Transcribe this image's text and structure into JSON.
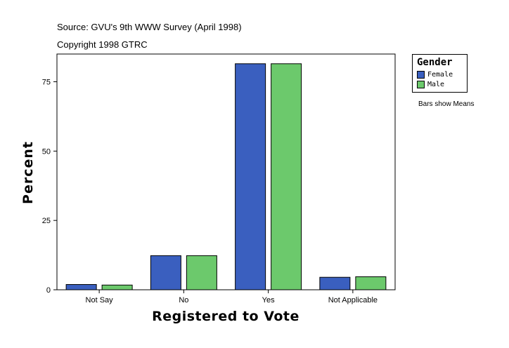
{
  "header": {
    "source": "Source: GVU's 9th WWW Survey (April 1998)",
    "copyright": "Copyright 1998 GTRC"
  },
  "legend": {
    "title": "Gender",
    "items": [
      {
        "label": "Female",
        "color": "#3a5fbf"
      },
      {
        "label": "Male",
        "color": "#6cc96c"
      }
    ]
  },
  "note": "Bars show Means",
  "chart_data": {
    "type": "bar",
    "categories": [
      "Not Say",
      "No",
      "Yes",
      "Not Applicable"
    ],
    "series": [
      {
        "name": "Female",
        "color": "#3a5fbf",
        "values": [
          1.9,
          12.3,
          81.5,
          4.5
        ]
      },
      {
        "name": "Male",
        "color": "#6cc96c",
        "values": [
          1.7,
          12.3,
          81.5,
          4.7
        ]
      }
    ],
    "xlabel": "Registered to Vote",
    "ylabel": "Percent",
    "ylim": [
      0,
      85
    ],
    "yticks": [
      0,
      25,
      50,
      75
    ],
    "grid": false,
    "legend_position": "top-right"
  }
}
